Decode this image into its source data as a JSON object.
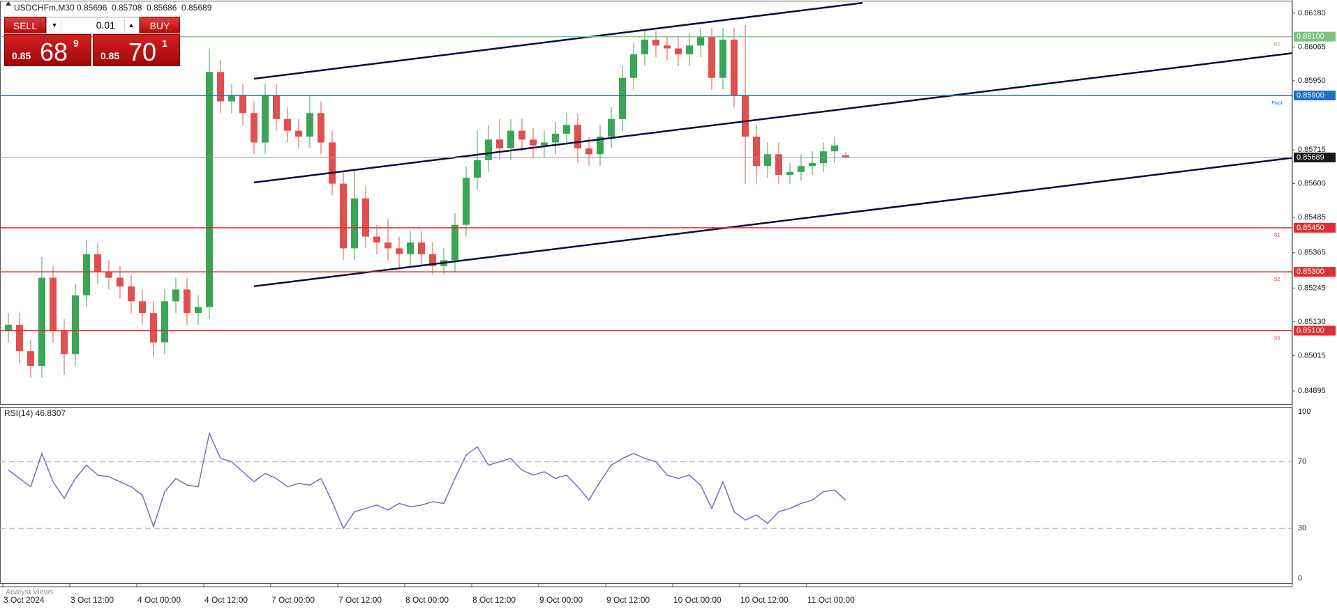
{
  "chart_data": {
    "type": "candlestick",
    "title": "USDCHFm,M30",
    "up_color": "#3aa655",
    "down_color": "#e0504f",
    "categories": [
      "3 Oct 2024",
      null,
      null,
      null,
      null,
      null,
      "3 Oct 12:00",
      null,
      null,
      null,
      null,
      null,
      "4 Oct 00:00",
      null,
      null,
      null,
      null,
      null,
      "4 Oct 12:00",
      null,
      null,
      null,
      null,
      null,
      "7 Oct 00:00",
      null,
      null,
      null,
      null,
      null,
      "7 Oct 12:00",
      null,
      null,
      null,
      null,
      null,
      "8 Oct 00:00",
      null,
      null,
      null,
      null,
      null,
      "8 Oct 12:00",
      null,
      null,
      null,
      null,
      null,
      "9 Oct 00:00",
      null,
      null,
      null,
      null,
      null,
      "9 Oct 12:00",
      null,
      null,
      null,
      null,
      null,
      "10 Oct 00:00",
      null,
      null,
      null,
      null,
      null,
      "10 Oct 12:00",
      null,
      null,
      null,
      null,
      null,
      "11 Oct 00:00",
      null,
      null,
      null
    ],
    "open": [
      0.851,
      0.8512,
      0.8503,
      0.8498,
      0.8528,
      0.851,
      0.8502,
      0.8522,
      0.8536,
      0.853,
      0.8528,
      0.8525,
      0.852,
      0.8516,
      0.8506,
      0.852,
      0.8524,
      0.8516,
      0.8518,
      0.8598,
      0.8588,
      0.859,
      0.8584,
      0.8574,
      0.859,
      0.8582,
      0.8578,
      0.8576,
      0.8584,
      0.8574,
      0.856,
      0.8538,
      0.8555,
      0.8542,
      0.854,
      0.8538,
      0.8536,
      0.854,
      0.8536,
      0.8532,
      0.8534,
      0.8546,
      0.8562,
      0.8568,
      0.8575,
      0.8572,
      0.8578,
      0.8575,
      0.8573,
      0.8574,
      0.8577,
      0.858,
      0.8572,
      0.857,
      0.8576,
      0.8582,
      0.8596,
      0.8604,
      0.8609,
      0.8607,
      0.8606,
      0.8604,
      0.8607,
      0.861,
      0.8596,
      0.8609,
      0.859,
      0.8576,
      0.8566,
      0.857,
      0.8563,
      0.8564,
      0.8566,
      0.8567,
      0.8571,
      0.85696
    ],
    "high": [
      0.8516,
      0.8516,
      0.8507,
      0.8535,
      0.8532,
      0.8514,
      0.8526,
      0.8541,
      0.854,
      0.8534,
      0.8532,
      0.8529,
      0.8524,
      0.852,
      0.8524,
      0.8528,
      0.8528,
      0.8522,
      0.8606,
      0.8602,
      0.8594,
      0.8594,
      0.8588,
      0.8594,
      0.8594,
      0.8586,
      0.8582,
      0.859,
      0.8588,
      0.8578,
      0.8564,
      0.8565,
      0.8559,
      0.8546,
      0.8548,
      0.8542,
      0.8544,
      0.8544,
      0.854,
      0.8538,
      0.855,
      0.8566,
      0.8578,
      0.858,
      0.8582,
      0.8582,
      0.8582,
      0.8579,
      0.8578,
      0.8581,
      0.8584,
      0.8584,
      0.8576,
      0.858,
      0.8586,
      0.86,
      0.8608,
      0.8612,
      0.8612,
      0.861,
      0.861,
      0.8611,
      0.8613,
      0.8613,
      0.8613,
      0.8613,
      0.8614,
      0.858,
      0.8574,
      0.8574,
      0.8567,
      0.857,
      0.8571,
      0.8574,
      0.8576,
      0.85708
    ],
    "low": [
      0.8506,
      0.8499,
      0.8494,
      0.8494,
      0.8506,
      0.8495,
      0.8498,
      0.8518,
      0.8526,
      0.8524,
      0.8521,
      0.8516,
      0.8512,
      0.8501,
      0.8502,
      0.8516,
      0.8512,
      0.8512,
      0.8514,
      0.8584,
      0.8584,
      0.858,
      0.857,
      0.857,
      0.8578,
      0.8574,
      0.8572,
      0.8572,
      0.857,
      0.8556,
      0.8534,
      0.8534,
      0.8538,
      0.8536,
      0.8534,
      0.8531,
      0.8532,
      0.8532,
      0.8529,
      0.8529,
      0.853,
      0.8542,
      0.8558,
      0.8564,
      0.8568,
      0.8568,
      0.8571,
      0.8569,
      0.8569,
      0.857,
      0.8573,
      0.8567,
      0.8566,
      0.8566,
      0.8572,
      0.8578,
      0.8592,
      0.86,
      0.8603,
      0.8602,
      0.86,
      0.86,
      0.8603,
      0.8592,
      0.8592,
      0.8586,
      0.856,
      0.856,
      0.8562,
      0.856,
      0.856,
      0.8561,
      0.8563,
      0.8564,
      0.8567,
      0.85686
    ],
    "close": [
      0.8512,
      0.8503,
      0.8498,
      0.8528,
      0.851,
      0.8502,
      0.8522,
      0.8536,
      0.853,
      0.8528,
      0.8525,
      0.852,
      0.8516,
      0.8506,
      0.852,
      0.8524,
      0.8516,
      0.8518,
      0.8598,
      0.8588,
      0.859,
      0.8584,
      0.8574,
      0.859,
      0.8582,
      0.8578,
      0.8576,
      0.8584,
      0.8574,
      0.856,
      0.8538,
      0.8555,
      0.8542,
      0.854,
      0.8538,
      0.8536,
      0.854,
      0.8536,
      0.8532,
      0.8534,
      0.8546,
      0.8562,
      0.8568,
      0.8575,
      0.8572,
      0.8578,
      0.8575,
      0.8573,
      0.8574,
      0.8577,
      0.858,
      0.8572,
      0.857,
      0.8576,
      0.8582,
      0.8596,
      0.8604,
      0.8609,
      0.8607,
      0.8606,
      0.8604,
      0.8607,
      0.861,
      0.8596,
      0.8609,
      0.859,
      0.8576,
      0.8566,
      0.857,
      0.8563,
      0.8564,
      0.8566,
      0.8567,
      0.8571,
      0.8573,
      0.85689
    ],
    "ylim": [
      0.8485,
      0.8622
    ],
    "yticks": [
      {
        "value": 0.8618,
        "label": "0.86180"
      },
      {
        "value": 0.86065,
        "label": "0.86065"
      },
      {
        "value": 0.8595,
        "label": "0.85950"
      },
      {
        "value": 0.85715,
        "label": "0.85715"
      },
      {
        "value": 0.856,
        "label": "0.85600"
      },
      {
        "value": 0.85485,
        "label": "0.85485"
      },
      {
        "value": 0.85365,
        "label": "0.85365"
      },
      {
        "value": 0.85245,
        "label": "0.85245"
      },
      {
        "value": 0.8513,
        "label": "0.85130"
      },
      {
        "value": 0.85015,
        "label": "0.85015"
      },
      {
        "value": 0.84895,
        "label": "0.84895"
      }
    ],
    "levels": [
      {
        "value": 0.861,
        "label": "0.86100",
        "name": "R2",
        "color": "#7cc47f"
      },
      {
        "value": 0.859,
        "label": "0.85900",
        "name": "Pivot",
        "color": "#1f6fc5"
      },
      {
        "value": 0.85689,
        "label": "0.85689",
        "color": "#9a9a9a"
      },
      {
        "value": 0.8545,
        "label": "0.85450",
        "name": "S1",
        "color": "#e03030"
      },
      {
        "value": 0.853,
        "label": "0.85300",
        "name": "S2",
        "color": "#e03030"
      },
      {
        "value": 0.851,
        "label": "0.85100",
        "name": "S3",
        "color": "#e03030"
      }
    ],
    "trendlines": [
      {
        "x": [
          22,
          76.5
        ],
        "y": [
          0.85957,
          0.86215
        ]
      },
      {
        "x": [
          22,
          115
        ],
        "y": [
          0.85604,
          0.86044
        ]
      },
      {
        "x": [
          22,
          115
        ],
        "y": [
          0.85251,
          0.85688
        ]
      }
    ],
    "rsi": {
      "title": "RSI(14) 46.8307",
      "color": "#7a6cc8",
      "values": [
        65,
        60,
        55,
        75,
        58,
        48,
        60,
        68,
        62,
        61,
        58,
        55,
        50,
        31,
        52,
        60,
        56,
        55,
        87,
        72,
        70,
        64,
        58,
        63,
        60,
        55,
        57,
        56,
        60,
        46,
        30,
        40,
        42,
        44,
        41,
        45,
        43,
        44,
        46,
        45,
        60,
        74,
        79,
        68,
        70,
        72,
        65,
        62,
        64,
        60,
        62,
        55,
        47,
        58,
        68,
        72,
        75,
        72,
        70,
        62,
        60,
        62,
        56,
        42,
        58,
        40,
        35,
        38,
        33,
        40,
        42,
        45,
        47,
        52,
        53,
        46.8307
      ],
      "ylim": [
        0,
        100
      ],
      "yticks": [
        100,
        70,
        30,
        0
      ]
    },
    "footer_tab": "Analyst Views"
  },
  "trade_panel": {
    "sell": "SELL",
    "buy": "BUY",
    "lot": "0.01",
    "bid": {
      "big": "0.85",
      "pips": "68",
      "frac": "9"
    },
    "ask": {
      "big": "0.85",
      "pips": "70",
      "frac": "1"
    }
  }
}
